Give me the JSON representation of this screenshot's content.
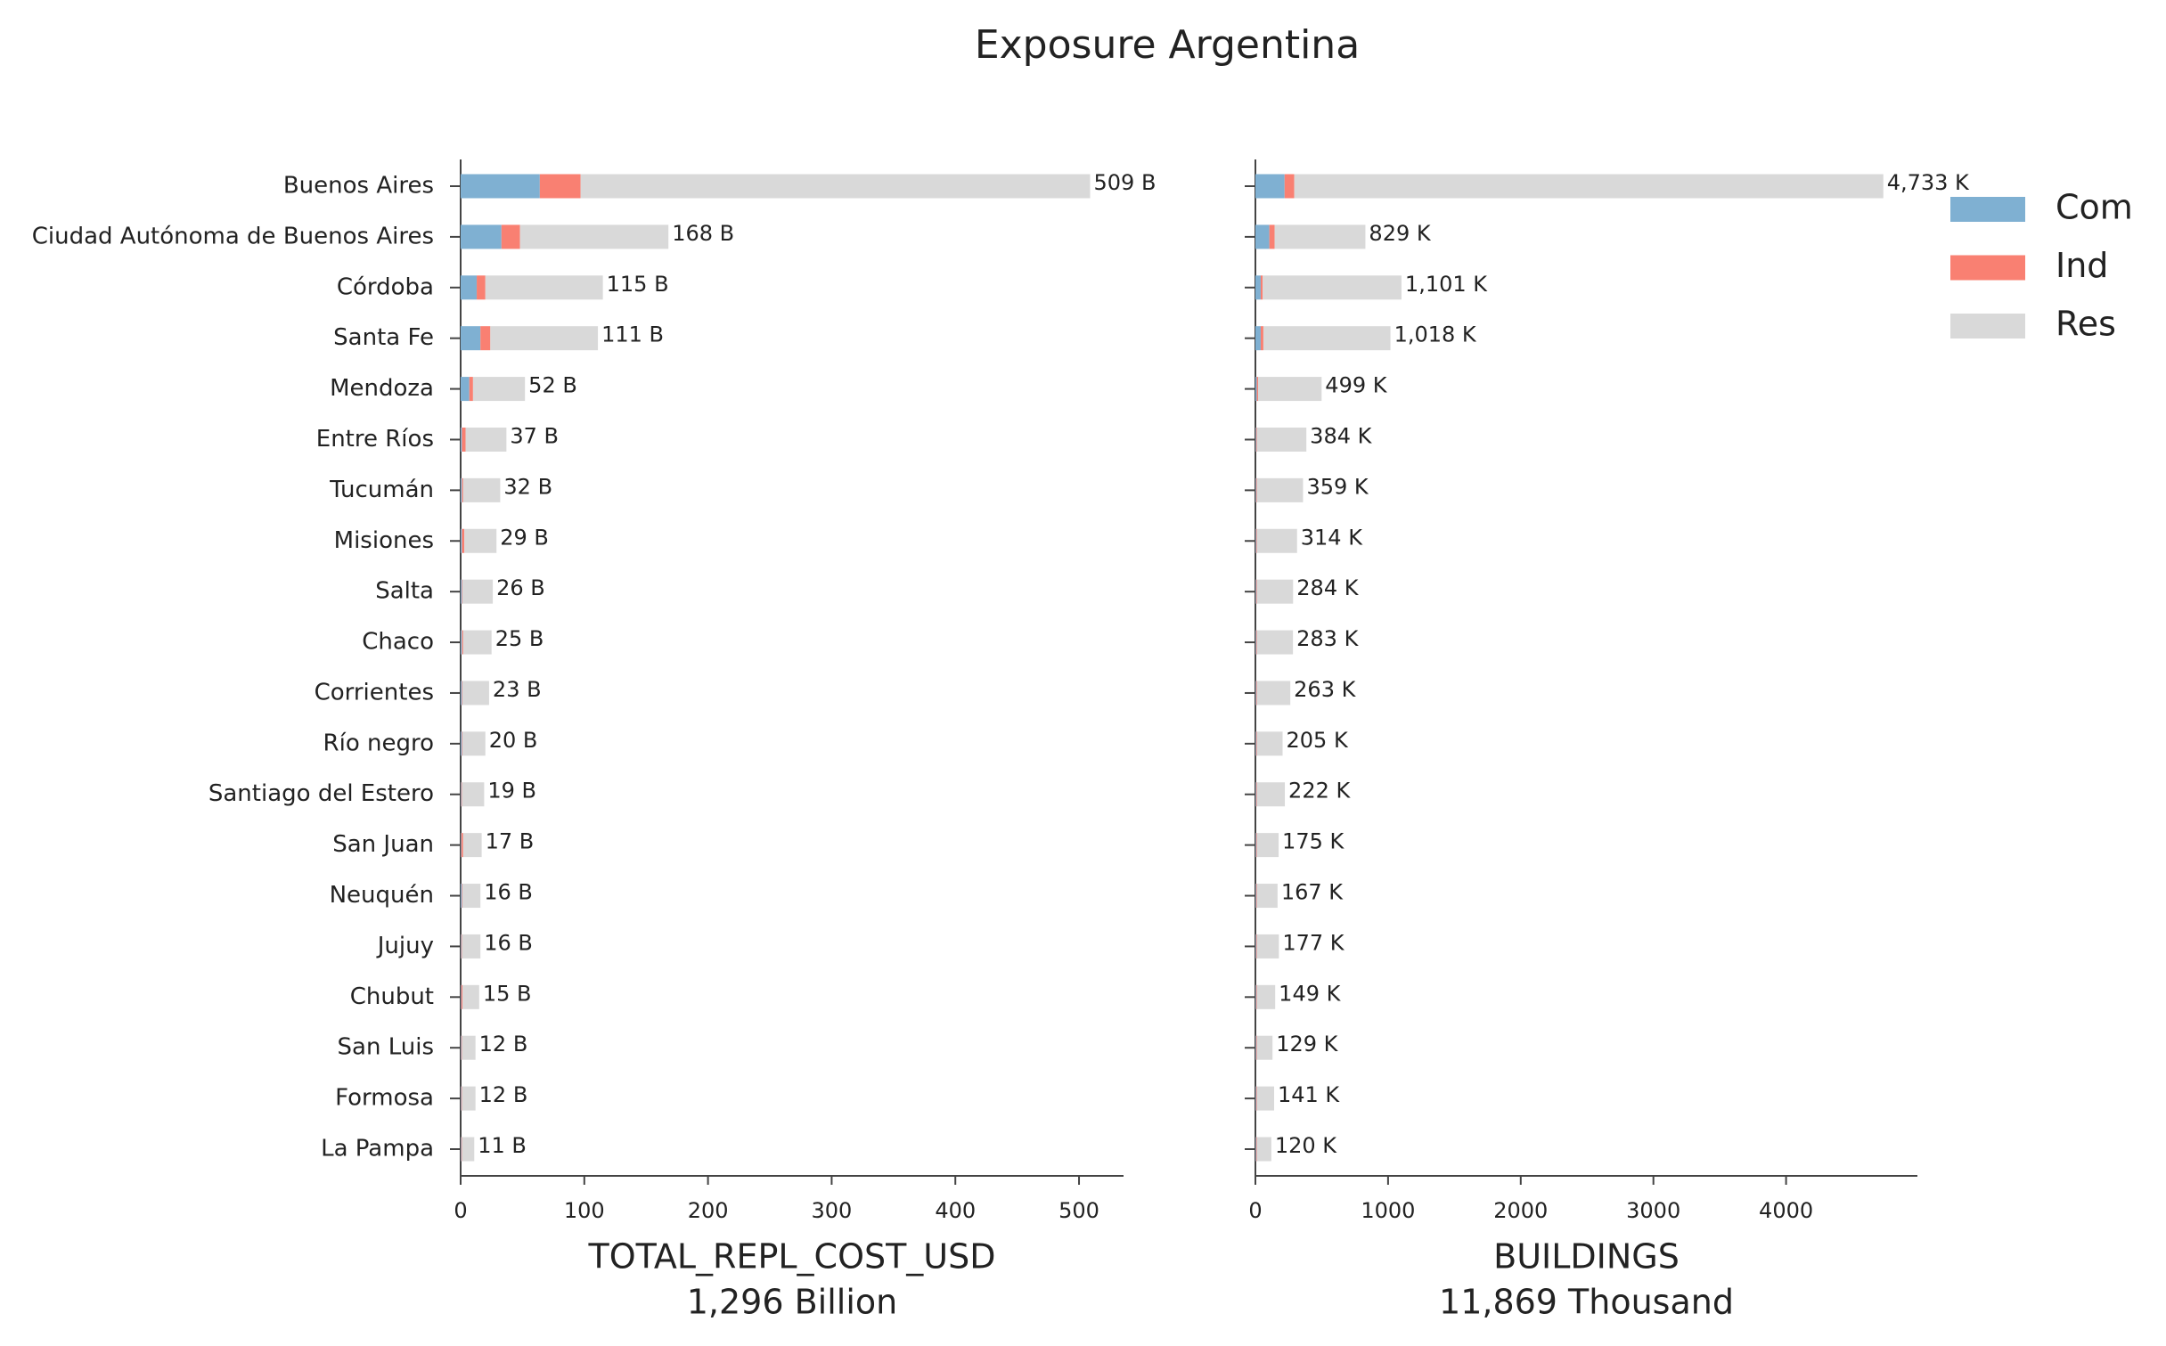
{
  "title": "Exposure Argentina",
  "chart_data": [
    {
      "type": "barh-stacked",
      "categories": [
        "Buenos Aires",
        "Ciudad Autónoma de Buenos Aires",
        "Córdoba",
        "Santa Fe",
        "Mendoza",
        "Entre Ríos",
        "Tucumán",
        "Misiones",
        "Salta",
        "Chaco",
        "Corrientes",
        "Río negro",
        "Santiago del Estero",
        "San Juan",
        "Neuquén",
        "Jujuy",
        "Chubut",
        "San Luis",
        "Formosa",
        "La Pampa"
      ],
      "series": [
        {
          "name": "Com",
          "color": "#7fb0d2",
          "values": [
            64,
            33,
            13,
            16,
            7,
            1,
            1,
            1,
            1,
            1,
            1,
            1,
            0.5,
            0.5,
            1,
            0.5,
            0.5,
            0.5,
            0.5,
            0.5
          ]
        },
        {
          "name": "Ind",
          "color": "#f98072",
          "values": [
            33,
            15,
            7,
            8,
            3,
            3,
            1,
            2,
            0.5,
            1,
            0.5,
            0.5,
            0.5,
            1.5,
            0.5,
            0.5,
            1,
            0.5,
            0.5,
            0.5
          ]
        },
        {
          "name": "Res",
          "color": "#d9d9d9",
          "values": [
            412,
            120,
            95,
            87,
            42,
            33,
            30,
            26,
            24.5,
            23,
            21.5,
            18.5,
            18,
            15,
            14.5,
            15,
            13.5,
            11,
            11,
            10
          ]
        }
      ],
      "totals": {
        "values": [
          509,
          168,
          115,
          111,
          52,
          37,
          32,
          29,
          26,
          25,
          23,
          20,
          19,
          17,
          16,
          16,
          15,
          12,
          12,
          11
        ],
        "value_labels": [
          "509 B",
          "168 B",
          "115 B",
          "111 B",
          "52 B",
          "37 B",
          "32 B",
          "29 B",
          "26 B",
          "25 B",
          "23 B",
          "20 B",
          "19 B",
          "17 B",
          "16 B",
          "16 B",
          "15 B",
          "12 B",
          "12 B",
          "11 B"
        ]
      },
      "xlim": [
        0,
        536
      ],
      "xticks": [
        0,
        100,
        200,
        300,
        400,
        500
      ],
      "xlabel": "TOTAL_REPL_COST_USD",
      "xsublabel": "1,296 Billion",
      "legend": "outside upper right"
    },
    {
      "type": "barh-stacked",
      "series": [
        {
          "name": "Com",
          "color": "#7fb0d2",
          "values": [
            220,
            105,
            40,
            40,
            10,
            5,
            5,
            5,
            5,
            5,
            5,
            5,
            5,
            5,
            5,
            5,
            5,
            5,
            5,
            5
          ]
        },
        {
          "name": "Ind",
          "color": "#f98072",
          "values": [
            73,
            40,
            15,
            20,
            10,
            5,
            5,
            5,
            5,
            5,
            5,
            5,
            5,
            5,
            5,
            5,
            5,
            5,
            5,
            5
          ]
        },
        {
          "name": "Res",
          "color": "#d9d9d9",
          "values": [
            4440,
            684,
            1046,
            958,
            479,
            374,
            349,
            304,
            274,
            273,
            253,
            195,
            212,
            165,
            157,
            167,
            139,
            119,
            131,
            110
          ]
        }
      ],
      "totals": {
        "values": [
          4733,
          829,
          1101,
          1018,
          499,
          384,
          359,
          314,
          284,
          283,
          263,
          205,
          222,
          175,
          167,
          177,
          149,
          129,
          141,
          120
        ],
        "value_labels": [
          "4,733 K",
          "829 K",
          "1,101 K",
          "1,018 K",
          "499 K",
          "384 K",
          "359 K",
          "314 K",
          "284 K",
          "283 K",
          "263 K",
          "205 K",
          "222 K",
          "175 K",
          "167 K",
          "177 K",
          "149 K",
          "129 K",
          "141 K",
          "120 K"
        ]
      },
      "xlim": [
        0,
        4990
      ],
      "xticks": [
        0,
        1000,
        2000,
        3000,
        4000
      ],
      "xlabel": "BUILDINGS",
      "xsublabel": "11,869 Thousand"
    }
  ]
}
